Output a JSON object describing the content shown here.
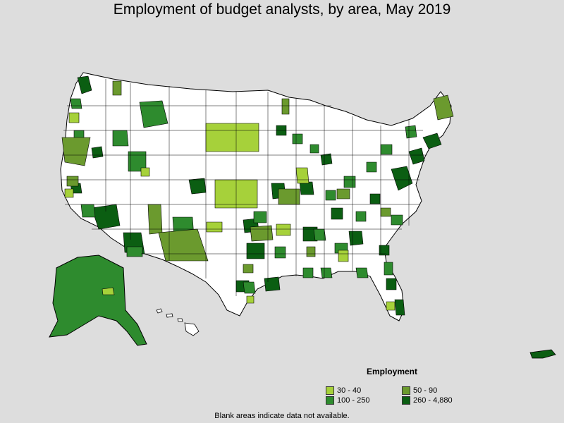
{
  "title": "Employment of budget analysts, by area, May 2019",
  "legend": {
    "title": "Employment",
    "items": [
      {
        "label": "30 - 40",
        "color": "#a6d13a"
      },
      {
        "label": "50 - 90",
        "color": "#6b9a2e"
      },
      {
        "label": "100 - 250",
        "color": "#2e8b2e"
      },
      {
        "label": "260 - 4,880",
        "color": "#0b5e12"
      }
    ]
  },
  "note": "Blank areas indicate data not available.",
  "colors": {
    "background": "#dddddd",
    "land": "#ffffff",
    "border": "#000000"
  }
}
